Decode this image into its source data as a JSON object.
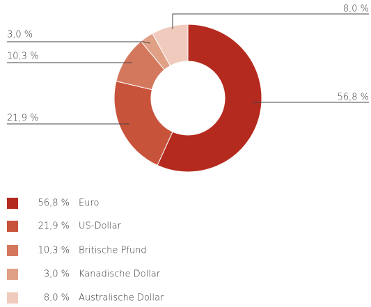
{
  "chart_data": {
    "type": "donut",
    "categories": [
      "Euro",
      "US-Dollar",
      "Britische Pfund",
      "Kanadische Dollar",
      "Australische Dollar"
    ],
    "values": [
      56.8,
      21.9,
      10.3,
      3.0,
      8.0
    ],
    "value_labels": [
      "56,8 %",
      "21,9 %",
      "10,3 %",
      "3,0 %",
      "8,0 %"
    ],
    "colors": [
      "#b52a1e",
      "#c8533b",
      "#d4785d",
      "#e0a086",
      "#f0cbbd"
    ]
  }
}
